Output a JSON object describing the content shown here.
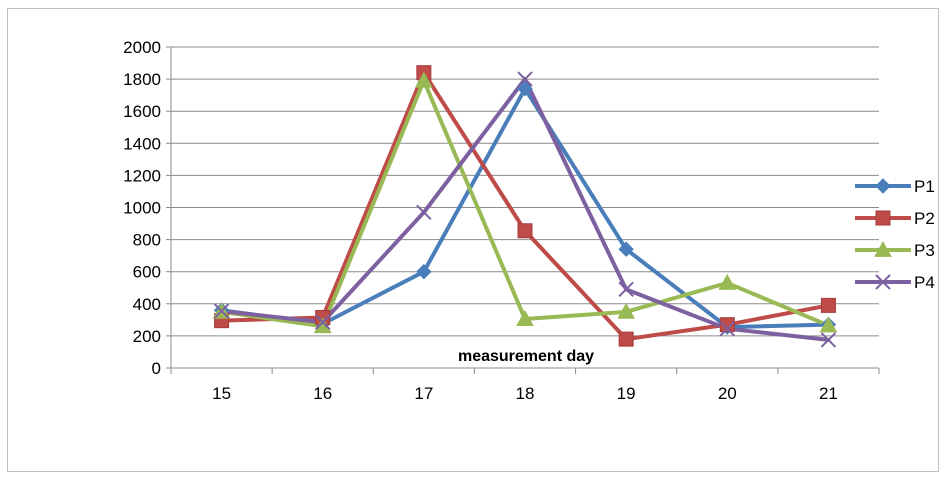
{
  "chart_data": {
    "type": "line",
    "title": "",
    "xlabel": "measurement day",
    "ylabel": "",
    "categories": [
      "15",
      "16",
      "17",
      "18",
      "19",
      "20",
      "21"
    ],
    "ylim": [
      0,
      2000
    ],
    "yticks": [
      0,
      200,
      400,
      600,
      800,
      1000,
      1200,
      1400,
      1600,
      1800,
      2000
    ],
    "grid": "horizontal",
    "legend_position": "right",
    "series": [
      {
        "name": "P1",
        "color": "#4a7ebb",
        "marker": "diamond",
        "values": [
          360,
          275,
          600,
          1740,
          740,
          255,
          270
        ]
      },
      {
        "name": "P2",
        "color": "#be4b48",
        "marker": "square",
        "values": [
          295,
          315,
          1840,
          855,
          180,
          270,
          390
        ]
      },
      {
        "name": "P3",
        "color": "#98b954",
        "marker": "triangle",
        "values": [
          350,
          260,
          1790,
          305,
          350,
          530,
          265
        ]
      },
      {
        "name": "P4",
        "color": "#7d60a0",
        "marker": "x",
        "values": [
          355,
          285,
          970,
          1800,
          490,
          245,
          175
        ]
      }
    ]
  }
}
